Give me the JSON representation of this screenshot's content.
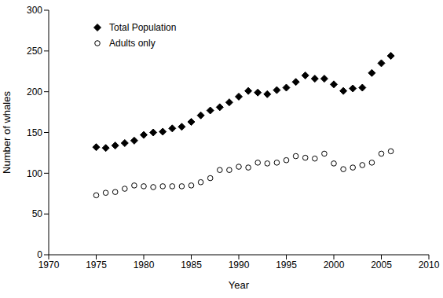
{
  "chart_data": {
    "type": "scatter",
    "x_label": "Year",
    "y_label": "Number of whales",
    "x": [
      1975,
      1976,
      1977,
      1978,
      1979,
      1980,
      1981,
      1982,
      1983,
      1984,
      1985,
      1986,
      1987,
      1988,
      1989,
      1990,
      1991,
      1992,
      1993,
      1994,
      1995,
      1996,
      1997,
      1998,
      1999,
      2000,
      2001,
      2002,
      2003,
      2004,
      2005,
      2006
    ],
    "series": [
      {
        "name": "Total Population",
        "color": "#000000",
        "marker": "diamond",
        "values": [
          132,
          131,
          134,
          137,
          140,
          147,
          150,
          151,
          155,
          157,
          163,
          171,
          177,
          181,
          187,
          194,
          201,
          199,
          197,
          202,
          205,
          212,
          220,
          216,
          216,
          209,
          201,
          204,
          205,
          223,
          235,
          244
        ]
      },
      {
        "name": "Adults only",
        "color": "#000000",
        "marker": "open_circle",
        "values": [
          73,
          76,
          77,
          81,
          85,
          84,
          83,
          84,
          84,
          84,
          85,
          89,
          94,
          104,
          104,
          108,
          107,
          113,
          112,
          113,
          116,
          121,
          119,
          118,
          124,
          112,
          105,
          107,
          110,
          113,
          124,
          127
        ]
      }
    ],
    "xlim": [
      1970,
      2010
    ],
    "xticks": [
      1970,
      1975,
      1980,
      1985,
      1990,
      1995,
      2000,
      2005,
      2010
    ],
    "ylim": [
      0,
      300
    ],
    "yticks": [
      0,
      50,
      100,
      150,
      200,
      250,
      300
    ],
    "grid": false,
    "legend": "upper left"
  }
}
